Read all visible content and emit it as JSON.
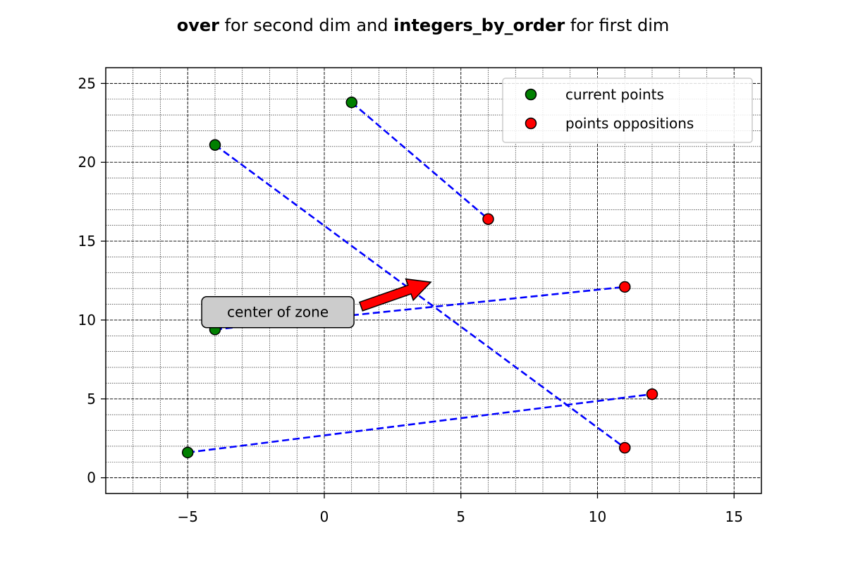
{
  "chart_data": {
    "type": "scatter",
    "title": {
      "part1_bold": "over",
      "part2": " for second dim and ",
      "part3_bold": "integers_by_order",
      "part4": " for first dim"
    },
    "xlabel": "",
    "ylabel": "",
    "xlim": [
      -8,
      16
    ],
    "ylim": [
      -1,
      26
    ],
    "x_ticks": [
      -5,
      0,
      5,
      10,
      15
    ],
    "x_tick_labels": [
      "−5",
      "0",
      "5",
      "10",
      "15"
    ],
    "y_ticks": [
      0,
      5,
      10,
      15,
      20,
      25
    ],
    "y_tick_labels": [
      "0",
      "5",
      "10",
      "15",
      "20",
      "25"
    ],
    "minor_x_step": 1,
    "minor_y_step": 1,
    "grid": true,
    "legend_position": "top-right",
    "series": [
      {
        "name": "current points",
        "color": "#008000",
        "points": [
          {
            "x": 1,
            "y": 23.8
          },
          {
            "x": -4,
            "y": 21.1
          },
          {
            "x": -4,
            "y": 9.4
          },
          {
            "x": -5,
            "y": 1.6
          }
        ]
      },
      {
        "name": "points oppositions",
        "color": "#ff0000",
        "points": [
          {
            "x": 6,
            "y": 16.4
          },
          {
            "x": 11,
            "y": 12.1
          },
          {
            "x": 12,
            "y": 5.3
          },
          {
            "x": 11,
            "y": 1.9
          }
        ]
      }
    ],
    "connections": [
      {
        "from": {
          "x": 1,
          "y": 23.8
        },
        "to": {
          "x": 6,
          "y": 16.4
        }
      },
      {
        "from": {
          "x": -4,
          "y": 21.1
        },
        "to": {
          "x": 11,
          "y": 1.9
        }
      },
      {
        "from": {
          "x": -4,
          "y": 9.4
        },
        "to": {
          "x": 11,
          "y": 12.1
        }
      },
      {
        "from": {
          "x": -5,
          "y": 1.6
        },
        "to": {
          "x": 12,
          "y": 5.3
        }
      }
    ],
    "connection_color": "#0000ff",
    "annotation": {
      "text": "center of zone",
      "text_at": {
        "x": -1.7,
        "y": 10.5
      },
      "arrow_tip": {
        "x": 3.9,
        "y": 12.4
      },
      "arrow_color": "#ff0000",
      "box_color": "#cccccc"
    }
  }
}
